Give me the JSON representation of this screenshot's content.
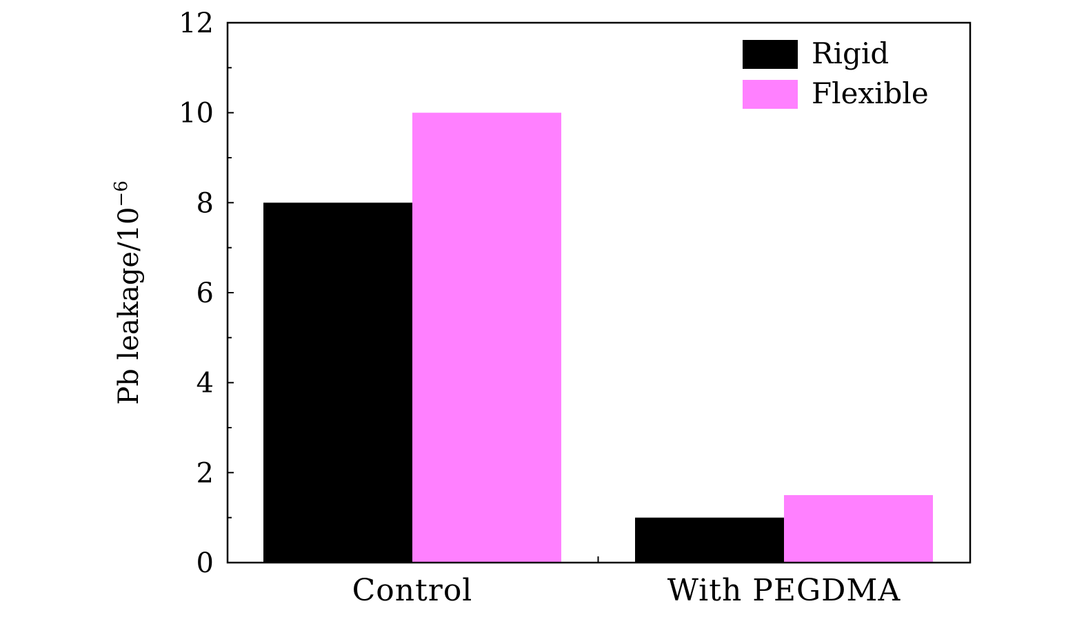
{
  "chart_data": {
    "type": "bar",
    "categories": [
      "Control",
      "With PEGDMA"
    ],
    "series": [
      {
        "name": "Rigid",
        "values": [
          8,
          1
        ],
        "color": "#000000"
      },
      {
        "name": "Flexible",
        "values": [
          10,
          1.5
        ],
        "color": "#ff80ff"
      }
    ],
    "title": "",
    "xlabel": "",
    "ylabel": "Pb leakage/10",
    "ylabel_superscript": "−6",
    "ylim": [
      0,
      12
    ],
    "yticks": [
      0,
      2,
      4,
      6,
      8,
      10,
      12
    ],
    "grid": false,
    "legend_position": "top-right"
  }
}
